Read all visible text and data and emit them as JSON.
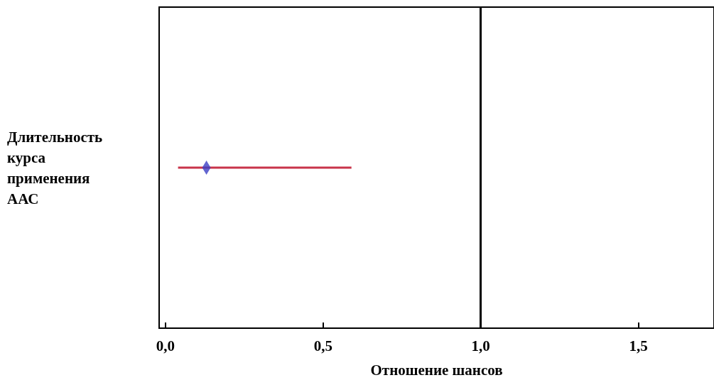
{
  "chart_data": {
    "type": "scatter",
    "orientation": "horizontal",
    "categories": [
      "Длительность курса применения ААС"
    ],
    "series": [
      {
        "color": "#3b3fc4",
        "values": [
          0.13
        ],
        "errors": [
          [
            0.04,
            0.59
          ]
        ]
      }
    ],
    "marker": "diamond",
    "xlabel": "Отношение шансов",
    "xlim": [
      -0.02,
      1.74
    ],
    "xticks": [
      {
        "value": 0,
        "label": "0,0"
      },
      {
        "value": 0.5,
        "label": "0,5"
      },
      {
        "value": 1,
        "label": "1,0"
      },
      {
        "value": 1.5,
        "label": "1,5"
      }
    ],
    "ref_lines": [
      {
        "axis": "x",
        "value": 1
      }
    ],
    "grid": false
  }
}
